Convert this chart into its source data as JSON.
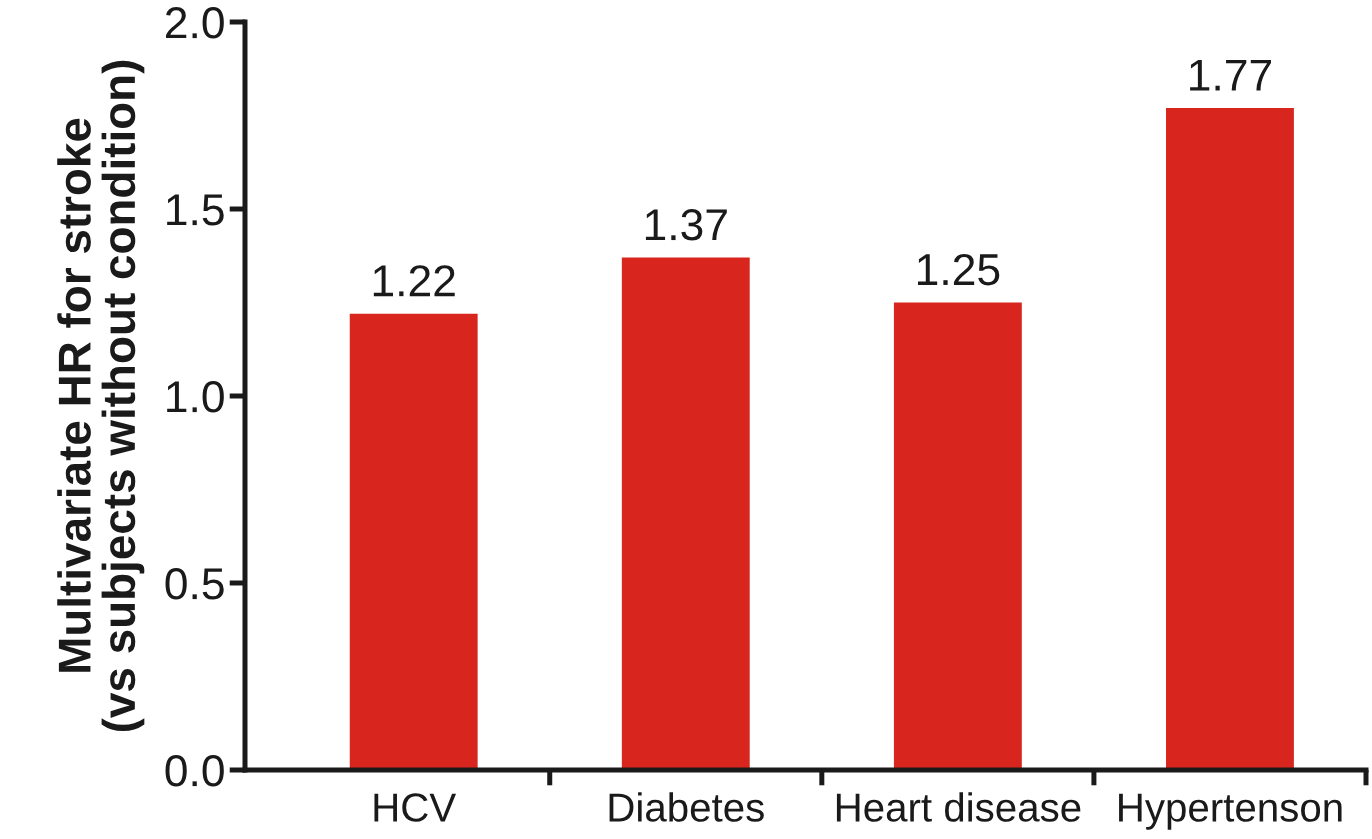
{
  "chart_data": {
    "type": "bar",
    "ylabel": "Multivariate HR for stroke\n(vs subjects without condition)",
    "categories": [
      "HCV",
      "Diabetes",
      "Heart disease",
      "Hypertenson"
    ],
    "values": [
      1.22,
      1.37,
      1.25,
      1.77
    ],
    "color": "#d8261e",
    "data_labels": true,
    "ylim": [
      0,
      2
    ],
    "yticks": [
      {
        "value": 0,
        "label": "0.0"
      },
      {
        "value": 0.5,
        "label": "0.5"
      },
      {
        "value": 1,
        "label": "1.0"
      },
      {
        "value": 1.5,
        "label": "1.5"
      },
      {
        "value": 2,
        "label": "2.0"
      }
    ]
  }
}
